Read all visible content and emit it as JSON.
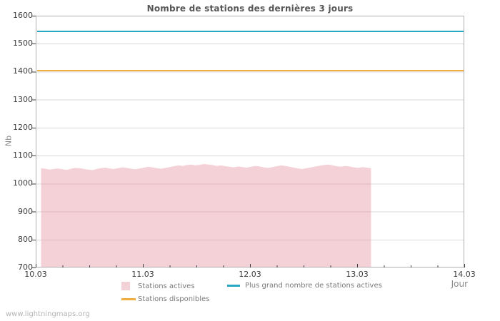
{
  "title": "Nombre de stations des dernières 3 jours",
  "watermark": "www.lightningmaps.org",
  "axes": {
    "y_label": "Nb",
    "x_label": "Jour"
  },
  "legend": [
    {
      "label": "Stations actives",
      "swatch": "box",
      "color": "#f2d2d7"
    },
    {
      "label": "Plus grand nombre de stations actives",
      "swatch": "line",
      "color": "#29a8c4"
    },
    {
      "label": "Stations disponibles",
      "swatch": "line",
      "color": "#efae3e"
    }
  ],
  "chart_data": {
    "type": "area",
    "title": "Nombre de stations des dernières 3 jours",
    "xlabel": "Jour",
    "ylabel": "Nb",
    "ylim": [
      700,
      1600
    ],
    "yticks": [
      700,
      800,
      900,
      1000,
      1100,
      1200,
      1300,
      1400,
      1500,
      1600
    ],
    "xticks": [
      "10.03",
      "11.03",
      "12.03",
      "13.03",
      "14.03"
    ],
    "x_minor_per_interval": 3,
    "grid": "horizontal",
    "colors": {
      "area_fill": "rgba(231,154,165,0.45)",
      "grid": "#d9d9d9",
      "border": "#b0b0b0",
      "tick": "#3c3c3c"
    },
    "series": [
      {
        "name": "Stations actives",
        "type": "area",
        "color": "#f2d2d7",
        "x_start": 0.05,
        "x_step": 0.04,
        "values": [
          1055,
          1053,
          1050,
          1052,
          1054,
          1051,
          1049,
          1053,
          1056,
          1055,
          1052,
          1050,
          1048,
          1052,
          1055,
          1057,
          1054,
          1052,
          1055,
          1058,
          1056,
          1053,
          1051,
          1054,
          1057,
          1060,
          1058,
          1055,
          1053,
          1056,
          1059,
          1062,
          1065,
          1063,
          1066,
          1068,
          1065,
          1067,
          1070,
          1068,
          1066,
          1063,
          1065,
          1062,
          1060,
          1058,
          1061,
          1059,
          1057,
          1060,
          1063,
          1061,
          1058,
          1056,
          1059,
          1062,
          1065,
          1063,
          1060,
          1057,
          1054,
          1052,
          1055,
          1058,
          1061,
          1064,
          1066,
          1068,
          1065,
          1062,
          1060,
          1063,
          1061,
          1058,
          1056,
          1059,
          1057,
          1055
        ]
      },
      {
        "name": "Plus grand nombre de stations actives",
        "type": "line",
        "color": "#29a8c4",
        "value": 1544
      },
      {
        "name": "Stations disponibles",
        "type": "line",
        "color": "#efae3e",
        "value": 1404
      }
    ]
  }
}
